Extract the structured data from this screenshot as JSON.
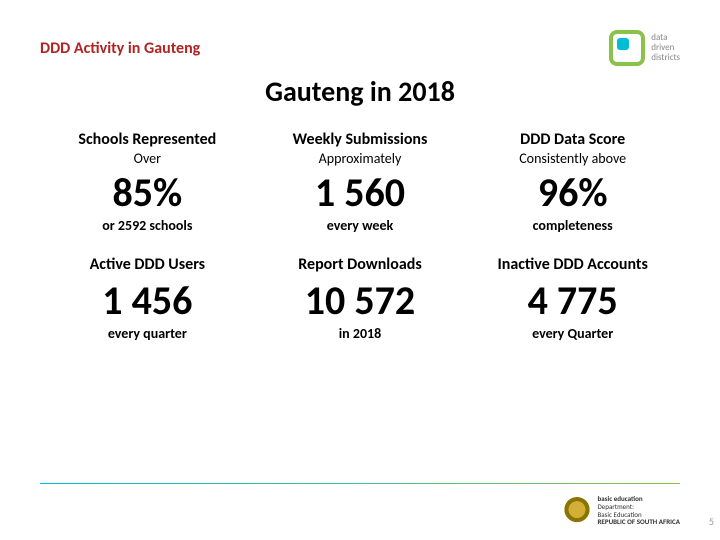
{
  "header": {
    "section_title": "DDD Activity in Gauteng",
    "logo_text": "data\ndriven\ndistricts"
  },
  "main_title": "Gauteng in 2018",
  "stats": [
    {
      "title": "Schools Represented",
      "subtitle": "Over",
      "value": "85%",
      "note": "or 2592 schools"
    },
    {
      "title": "Weekly Submissions",
      "subtitle": "Approximately",
      "value": "1 560",
      "note": "every week"
    },
    {
      "title": "DDD Data Score",
      "subtitle": "Consistently above",
      "value": "96%",
      "note": "completeness"
    },
    {
      "title": "Active DDD Users",
      "subtitle": "",
      "value": "1 456",
      "note": "every quarter"
    },
    {
      "title": "Report Downloads",
      "subtitle": "",
      "value": "10 572",
      "note": "in 2018"
    },
    {
      "title": "Inactive DDD Accounts",
      "subtitle": "",
      "value": "4 775",
      "note": "every Quarter"
    }
  ],
  "footer": {
    "dept_line1": "basic education",
    "dept_line2": "Department:",
    "dept_line3": "Basic Education",
    "dept_line4": "REPUBLIC OF SOUTH AFRICA"
  },
  "page_number": "5",
  "colors": {
    "section_title": "#b22222",
    "accent_green": "#8bc34a",
    "accent_teal": "#00bcd4",
    "text": "#000000",
    "background": "#ffffff"
  }
}
